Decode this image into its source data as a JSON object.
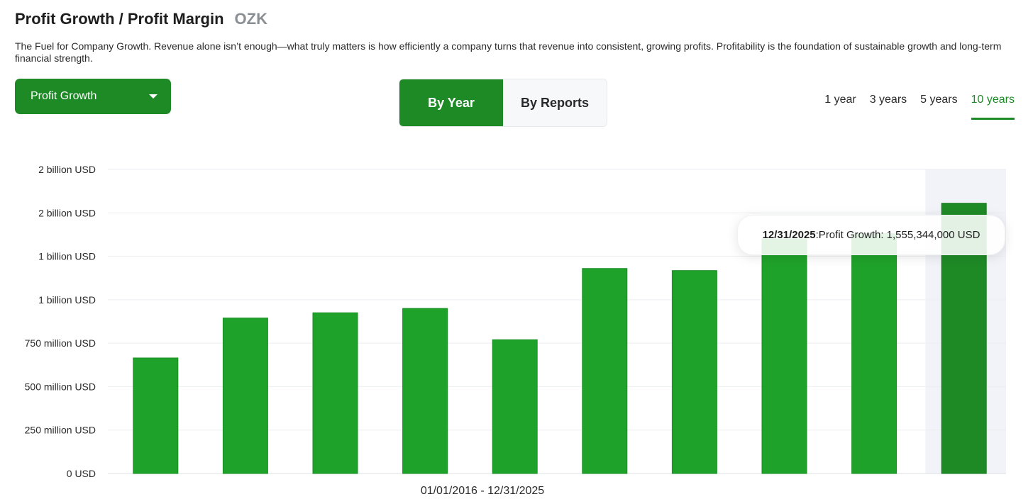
{
  "header": {
    "title": "Profit Growth / Profit Margin",
    "ticker": "OZK",
    "description": "The Fuel for Company Growth. Revenue alone isn’t enough—what truly matters is how efficiently a company turns that revenue into consistent, growing profits. Profitability is the foundation of sustainable growth and long-term financial strength."
  },
  "controls": {
    "metric_select": "Profit Growth",
    "view_toggle": [
      "By Year",
      "By Reports"
    ],
    "active_view": "By Year",
    "periods": [
      "1 year",
      "3 years",
      "5 years",
      "10 years"
    ],
    "active_period": "10 years"
  },
  "tooltip": {
    "date": "12/31/2025",
    "text": ":Profit Growth: 1,555,344,000 USD"
  },
  "colors": {
    "accent": "#1e8a26",
    "bar": "#1fa22a",
    "bar_highlight": "#1e8a26",
    "highlight_band": "#f1f3f9"
  },
  "chart_data": {
    "type": "bar",
    "y_tick_values": [
      0,
      250000000,
      500000000,
      750000000,
      1000000000,
      1250000000,
      1500000000,
      1750000000
    ],
    "y_tick_labels": [
      "0 USD",
      "250 million USD",
      "500 million USD",
      "750 million USD",
      "1 billion USD",
      "1 billion USD",
      "2 billion USD",
      "2 billion USD"
    ],
    "ylim": [
      0,
      1750000000
    ],
    "values": [
      665000000,
      895000000,
      925000000,
      950000000,
      770000000,
      1180000000,
      1168000000,
      1350000000,
      1380000000,
      1555344000
    ],
    "highlight_index": 9,
    "x_range_label": "01/01/2016 - 12/31/2025",
    "grid": true,
    "legend": "none"
  }
}
